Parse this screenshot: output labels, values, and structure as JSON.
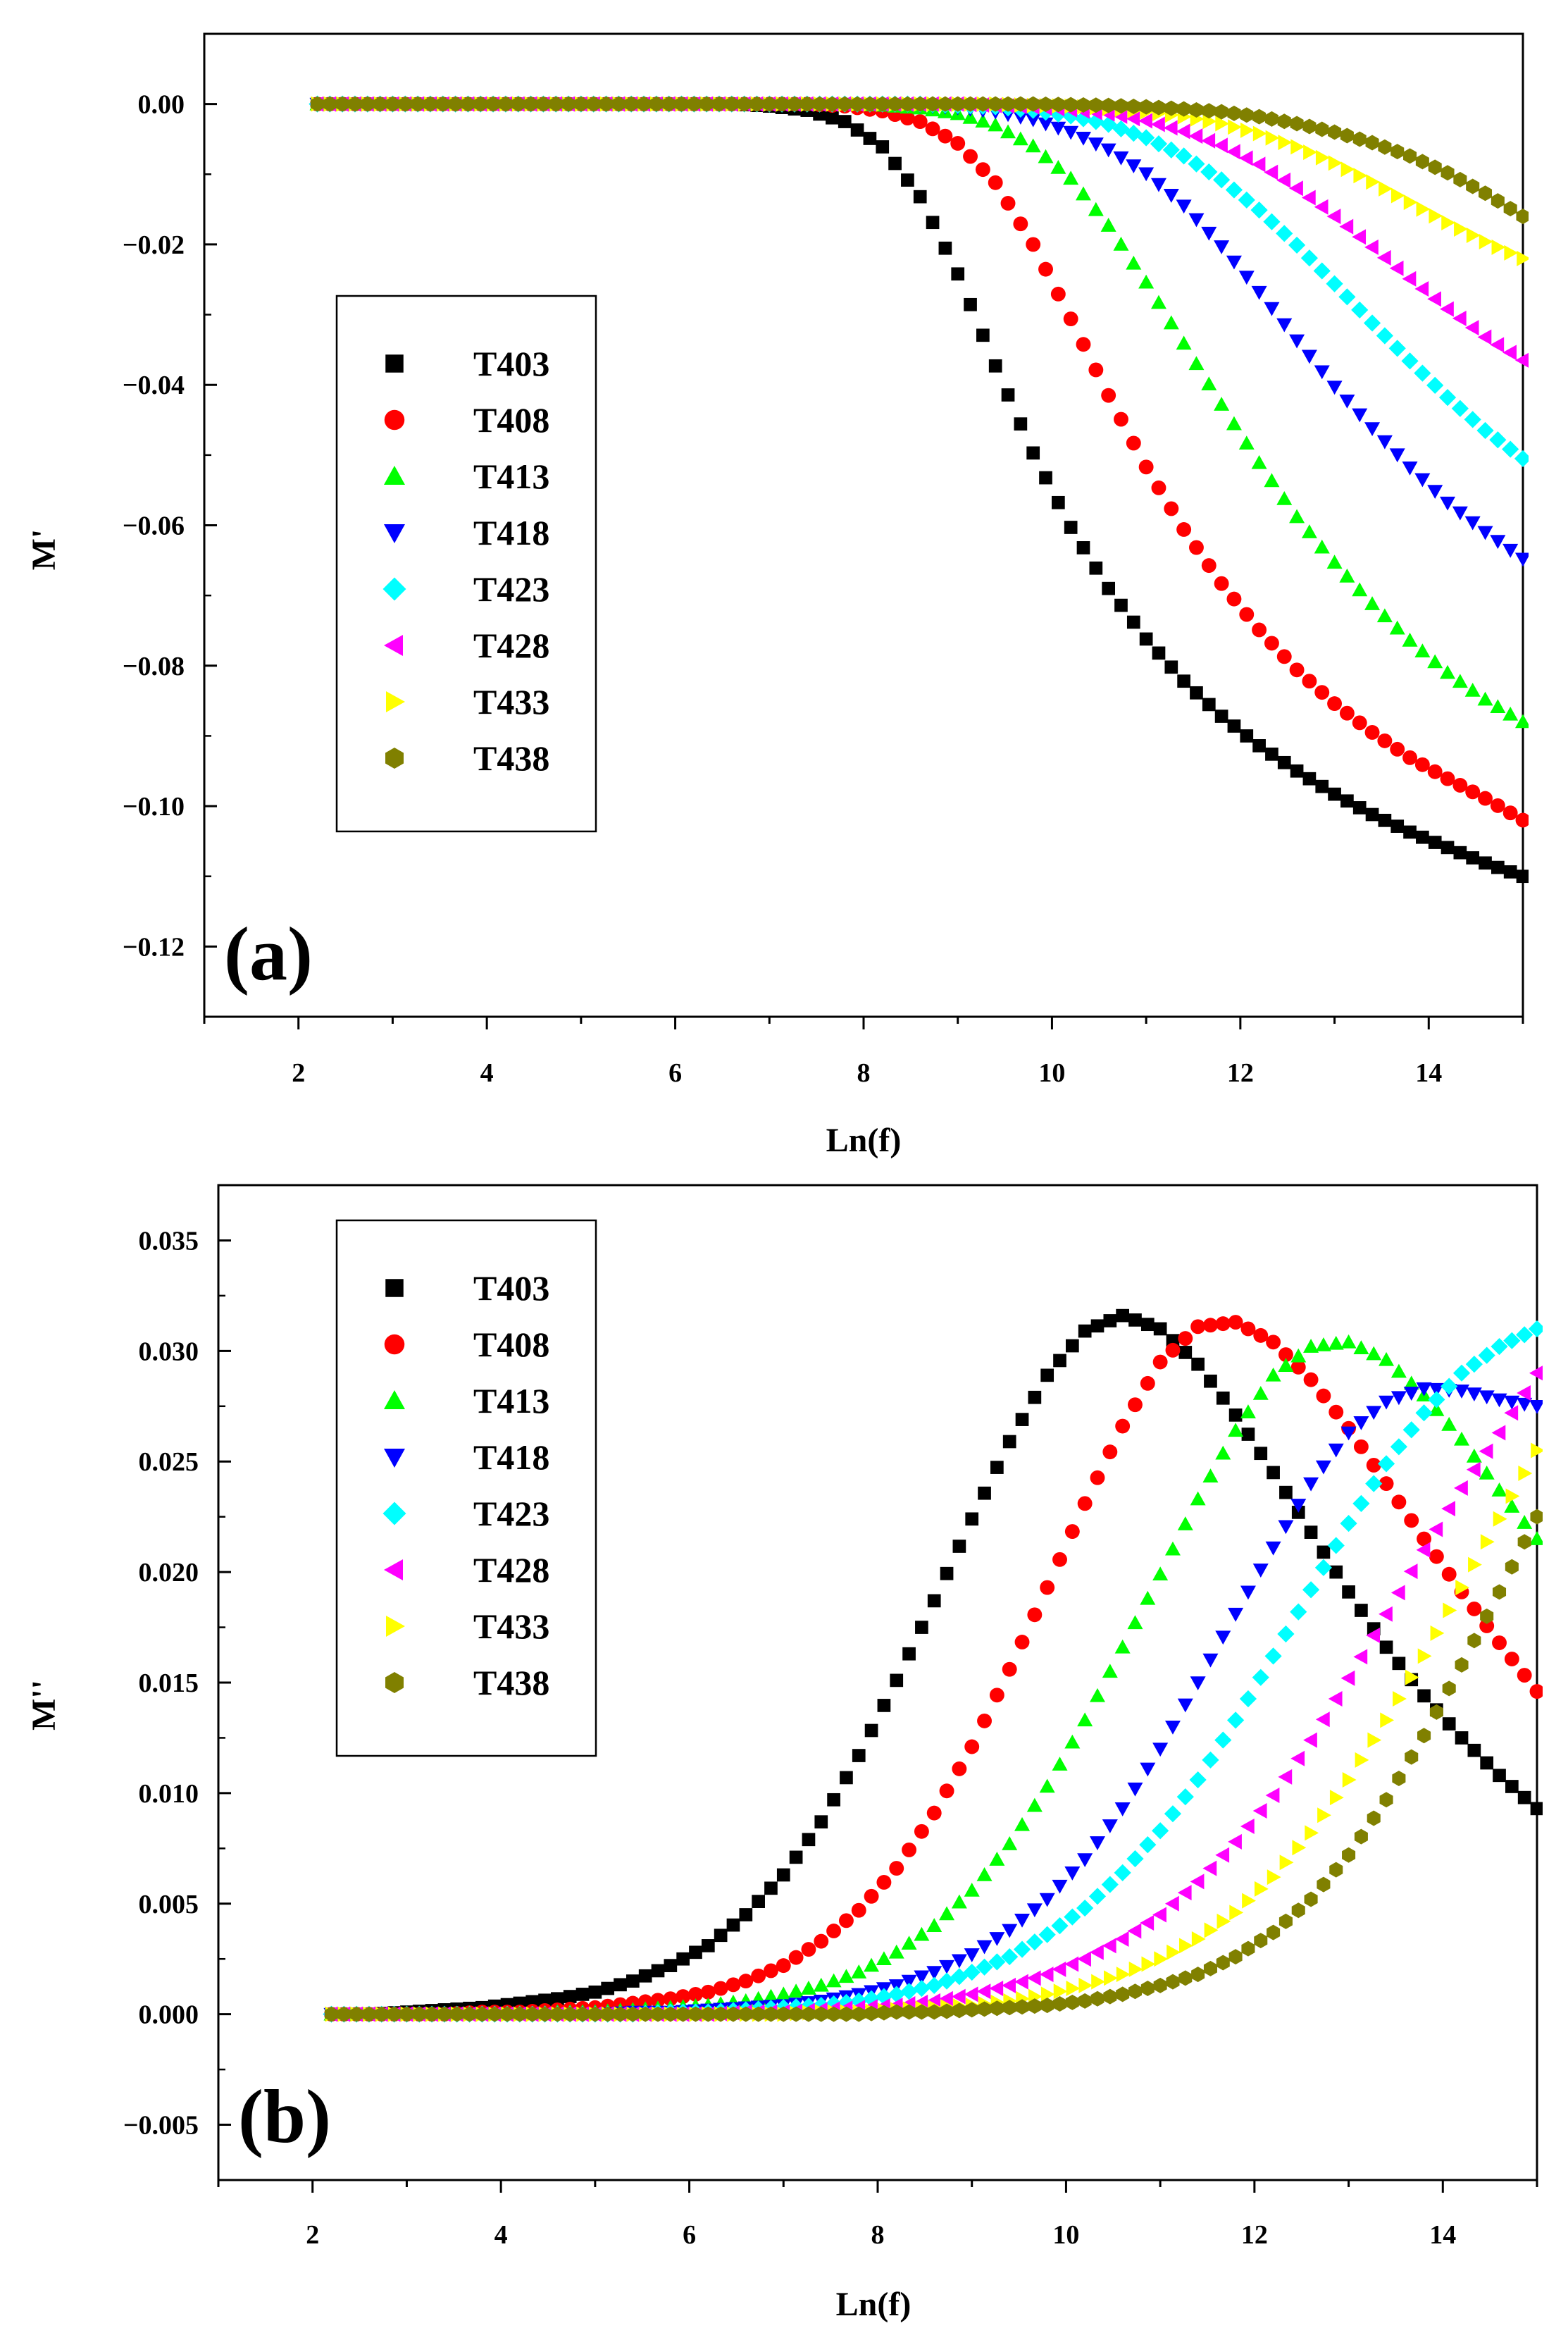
{
  "colors": {
    "T403": "#000000",
    "T408": "#ff0000",
    "T413": "#00ff00",
    "T418": "#0000ff",
    "T423": "#00ffff",
    "T428": "#ff00ff",
    "T433": "#ffff00",
    "T438": "#808000"
  },
  "chart_data": [
    {
      "type": "scatter",
      "panel_label": "(a)",
      "title": "",
      "xlabel": "Ln(f)",
      "ylabel": "M'",
      "xlim": [
        1,
        15
      ],
      "ylim": [
        -0.13,
        0.01
      ],
      "xticks": [
        2,
        4,
        6,
        8,
        10,
        12,
        14
      ],
      "xtick_labels": [
        "2",
        "4",
        "6",
        "8",
        "10",
        "12",
        "14"
      ],
      "yticks": [
        0.0,
        -0.02,
        -0.04,
        -0.06,
        -0.08,
        -0.1,
        -0.12
      ],
      "ytick_labels": [
        "0.00",
        "−0.02",
        "−0.04",
        "−0.06",
        "−0.08",
        "−0.10",
        "−0.12"
      ],
      "legend_position": "left-middle",
      "x": [
        2.2,
        2.6,
        3.0,
        3.4,
        3.8,
        4.2,
        4.6,
        5.0,
        5.4,
        5.8,
        6.2,
        6.6,
        7.0,
        7.4,
        7.8,
        8.2,
        8.6,
        9.0,
        9.4,
        9.8,
        10.2,
        10.6,
        11.0,
        11.4,
        11.8,
        12.2,
        12.6,
        13.0,
        13.4,
        13.8,
        14.2,
        14.6,
        15.0
      ],
      "series": [
        {
          "name": "T403",
          "marker": "square",
          "values": [
            0.0,
            0.0,
            0.0,
            0.0,
            0.0,
            0.0,
            0.0,
            0.0,
            0.0,
            0.0,
            0.0,
            0.0,
            -0.0003,
            -0.0009,
            -0.0025,
            -0.0061,
            -0.0132,
            -0.0242,
            -0.0373,
            -0.0497,
            -0.0603,
            -0.069,
            -0.0762,
            -0.0822,
            -0.0872,
            -0.0914,
            -0.095,
            -0.0983,
            -0.1012,
            -0.1037,
            -0.1059,
            -0.1081,
            -0.11
          ]
        },
        {
          "name": "T408",
          "marker": "circle",
          "values": [
            0.0,
            0.0,
            0.0,
            0.0,
            0.0,
            0.0,
            0.0,
            0.0,
            0.0,
            0.0,
            0.0,
            0.0,
            0.0,
            0.0,
            -0.0003,
            -0.001,
            -0.0025,
            -0.0056,
            -0.0112,
            -0.02,
            -0.0306,
            -0.0415,
            -0.0517,
            -0.0606,
            -0.0683,
            -0.0749,
            -0.0806,
            -0.0854,
            -0.0895,
            -0.0931,
            -0.0961,
            -0.0989,
            -0.102
          ]
        },
        {
          "name": "T413",
          "marker": "triangle-up",
          "values": [
            0.0,
            0.0,
            0.0,
            0.0,
            0.0,
            0.0,
            0.0,
            0.0,
            0.0,
            0.0,
            0.0,
            0.0,
            0.0,
            0.0,
            0.0,
            -0.0002,
            -0.0006,
            -0.0014,
            -0.003,
            -0.006,
            -0.0106,
            -0.0173,
            -0.0254,
            -0.0341,
            -0.0428,
            -0.0511,
            -0.0588,
            -0.0653,
            -0.0712,
            -0.0764,
            -0.081,
            -0.0848,
            -0.088
          ]
        },
        {
          "name": "T418",
          "marker": "triangle-down",
          "values": [
            0.0,
            0.0,
            0.0,
            0.0,
            0.0,
            0.0,
            0.0,
            0.0,
            0.0,
            0.0,
            0.0,
            0.0,
            0.0,
            0.0,
            0.0,
            0.0,
            -0.0002,
            -0.0005,
            -0.0011,
            -0.0022,
            -0.004,
            -0.0065,
            -0.0099,
            -0.0145,
            -0.0203,
            -0.0268,
            -0.0337,
            -0.0403,
            -0.0462,
            -0.0518,
            -0.0568,
            -0.061,
            -0.0648
          ]
        },
        {
          "name": "T423",
          "marker": "diamond",
          "values": [
            0.0,
            0.0,
            0.0,
            0.0,
            0.0,
            0.0,
            0.0,
            0.0,
            0.0,
            0.0,
            0.0,
            0.0,
            0.0,
            0.0,
            0.0,
            0.0,
            0.0,
            -0.0002,
            -0.0004,
            -0.0009,
            -0.0017,
            -0.0029,
            -0.0048,
            -0.0074,
            -0.0108,
            -0.0151,
            -0.0201,
            -0.0256,
            -0.0312,
            -0.0366,
            -0.0418,
            -0.0465,
            -0.0505
          ]
        },
        {
          "name": "T428",
          "marker": "triangle-left",
          "values": [
            0.0,
            0.0,
            0.0,
            0.0,
            0.0,
            0.0,
            0.0,
            0.0,
            0.0,
            0.0,
            0.0,
            0.0,
            0.0,
            0.0,
            0.0,
            0.0,
            0.0,
            0.0,
            -0.0002,
            -0.0004,
            -0.0008,
            -0.0014,
            -0.0024,
            -0.0039,
            -0.0059,
            -0.0086,
            -0.012,
            -0.016,
            -0.0204,
            -0.0249,
            -0.0292,
            -0.0332,
            -0.0365
          ]
        },
        {
          "name": "T433",
          "marker": "triangle-right",
          "values": [
            0.0,
            0.0,
            0.0,
            0.0,
            0.0,
            0.0,
            0.0,
            0.0,
            0.0,
            0.0,
            0.0,
            0.0,
            0.0,
            0.0,
            0.0,
            0.0,
            0.0,
            0.0,
            0.0,
            -0.0002,
            -0.0003,
            -0.0006,
            -0.0011,
            -0.0018,
            -0.0028,
            -0.0042,
            -0.0061,
            -0.0084,
            -0.0111,
            -0.014,
            -0.0169,
            -0.0196,
            -0.022
          ]
        },
        {
          "name": "T438",
          "marker": "hexagon",
          "values": [
            0.0,
            0.0,
            0.0,
            0.0,
            0.0,
            0.0,
            0.0,
            0.0,
            0.0,
            0.0,
            0.0,
            0.0,
            0.0,
            0.0,
            0.0,
            0.0,
            0.0,
            0.0,
            0.0,
            0.0,
            -0.0001,
            -0.0002,
            -0.0004,
            -0.0007,
            -0.0011,
            -0.0018,
            -0.0028,
            -0.004,
            -0.0055,
            -0.0074,
            -0.0098,
            -0.0127,
            -0.016
          ]
        }
      ]
    },
    {
      "type": "scatter",
      "panel_label": "(b)",
      "title": "",
      "xlabel": "Ln(f)",
      "ylabel": "M''",
      "xlim": [
        1,
        15
      ],
      "ylim": [
        -0.0075,
        0.0375
      ],
      "xticks": [
        2,
        4,
        6,
        8,
        10,
        12,
        14
      ],
      "xtick_labels": [
        "2",
        "4",
        "6",
        "8",
        "10",
        "12",
        "14"
      ],
      "yticks": [
        0.035,
        0.03,
        0.025,
        0.02,
        0.015,
        0.01,
        0.005,
        0.0,
        -0.005
      ],
      "ytick_labels": [
        "0.035",
        "0.030",
        "0.025",
        "0.020",
        "0.015",
        "0.010",
        "0.005",
        "0.000",
        "−0.005"
      ],
      "legend_position": "top-left",
      "x": [
        2.2,
        2.6,
        3.0,
        3.4,
        3.8,
        4.2,
        4.6,
        5.0,
        5.4,
        5.8,
        6.2,
        6.6,
        7.0,
        7.4,
        7.8,
        8.2,
        8.6,
        9.0,
        9.4,
        9.8,
        10.2,
        10.6,
        11.0,
        11.4,
        11.8,
        12.2,
        12.6,
        13.0,
        13.4,
        13.8,
        14.2,
        14.6,
        15.0
      ],
      "series": [
        {
          "name": "T403",
          "marker": "square",
          "values": [
            0.0,
            0.0,
            0.0001,
            0.0002,
            0.0003,
            0.0005,
            0.0007,
            0.001,
            0.0015,
            0.0022,
            0.0031,
            0.0045,
            0.0063,
            0.0087,
            0.0117,
            0.0151,
            0.0187,
            0.0224,
            0.0259,
            0.0289,
            0.0309,
            0.0316,
            0.031,
            0.0294,
            0.0271,
            0.0245,
            0.0218,
            0.0191,
            0.0166,
            0.0144,
            0.0125,
            0.0108,
            0.0093
          ]
        },
        {
          "name": "T408",
          "marker": "circle",
          "values": [
            0.0,
            0.0,
            0.0,
            0.0,
            0.0001,
            0.0001,
            0.0002,
            0.0003,
            0.0005,
            0.0007,
            0.001,
            0.0015,
            0.0022,
            0.0033,
            0.0047,
            0.0066,
            0.0091,
            0.0121,
            0.0156,
            0.0193,
            0.0231,
            0.0266,
            0.0295,
            0.0311,
            0.0313,
            0.0304,
            0.0287,
            0.0265,
            0.024,
            0.0215,
            0.0191,
            0.0168,
            0.0146
          ]
        },
        {
          "name": "T413",
          "marker": "triangle-up",
          "values": [
            0.0,
            0.0,
            0.0,
            0.0,
            0.0,
            0.0,
            0.0001,
            0.0001,
            0.0002,
            0.0003,
            0.0004,
            0.0006,
            0.0009,
            0.0013,
            0.0019,
            0.0028,
            0.004,
            0.0056,
            0.0077,
            0.0103,
            0.0133,
            0.0166,
            0.0199,
            0.0233,
            0.0264,
            0.0289,
            0.0302,
            0.0304,
            0.0296,
            0.028,
            0.026,
            0.0237,
            0.0215
          ]
        },
        {
          "name": "T418",
          "marker": "triangle-down",
          "values": [
            0.0,
            0.0,
            0.0,
            0.0,
            0.0,
            0.0,
            0.0,
            0.0,
            0.0001,
            0.0001,
            0.0002,
            0.0003,
            0.0004,
            0.0006,
            0.0009,
            0.0013,
            0.0019,
            0.0027,
            0.0038,
            0.0052,
            0.007,
            0.0093,
            0.012,
            0.015,
            0.0181,
            0.0211,
            0.024,
            0.0263,
            0.0277,
            0.0283,
            0.0282,
            0.0278,
            0.0275
          ]
        },
        {
          "name": "T423",
          "marker": "diamond",
          "values": [
            0.0,
            0.0,
            0.0,
            0.0,
            0.0,
            0.0,
            0.0,
            0.0,
            0.0,
            0.0001,
            0.0001,
            0.0002,
            0.0003,
            0.0004,
            0.0006,
            0.0009,
            0.0013,
            0.0019,
            0.0026,
            0.0036,
            0.0048,
            0.0064,
            0.0083,
            0.0106,
            0.0133,
            0.0162,
            0.0192,
            0.0222,
            0.0249,
            0.0272,
            0.029,
            0.0302,
            0.031
          ]
        },
        {
          "name": "T428",
          "marker": "triangle-left",
          "values": [
            0.0,
            0.0,
            0.0,
            0.0,
            0.0,
            0.0,
            0.0,
            0.0,
            0.0,
            0.0,
            0.0,
            0.0001,
            0.0001,
            0.0002,
            0.0003,
            0.0004,
            0.0006,
            0.0009,
            0.0013,
            0.0018,
            0.0025,
            0.0034,
            0.0045,
            0.006,
            0.0078,
            0.0099,
            0.0124,
            0.0152,
            0.0181,
            0.021,
            0.0238,
            0.0263,
            0.029
          ]
        },
        {
          "name": "T433",
          "marker": "triangle-right",
          "values": [
            0.0,
            0.0,
            0.0,
            0.0,
            0.0,
            0.0,
            0.0,
            0.0,
            0.0,
            0.0,
            0.0,
            0.0,
            0.0,
            0.0001,
            0.0001,
            0.0002,
            0.0003,
            0.0004,
            0.0006,
            0.0009,
            0.0013,
            0.0018,
            0.0025,
            0.0034,
            0.0046,
            0.0062,
            0.0082,
            0.0106,
            0.0133,
            0.0162,
            0.0193,
            0.0224,
            0.0255
          ]
        },
        {
          "name": "T438",
          "marker": "hexagon",
          "values": [
            0.0,
            0.0,
            0.0,
            0.0,
            0.0,
            0.0,
            0.0,
            0.0,
            0.0,
            0.0,
            0.0,
            0.0,
            0.0,
            0.0,
            0.0,
            0.0001,
            0.0001,
            0.0002,
            0.0003,
            0.0004,
            0.0006,
            0.0009,
            0.0013,
            0.0018,
            0.0026,
            0.0037,
            0.0052,
            0.0072,
            0.0097,
            0.0126,
            0.0158,
            0.0191,
            0.0225
          ]
        }
      ]
    }
  ]
}
